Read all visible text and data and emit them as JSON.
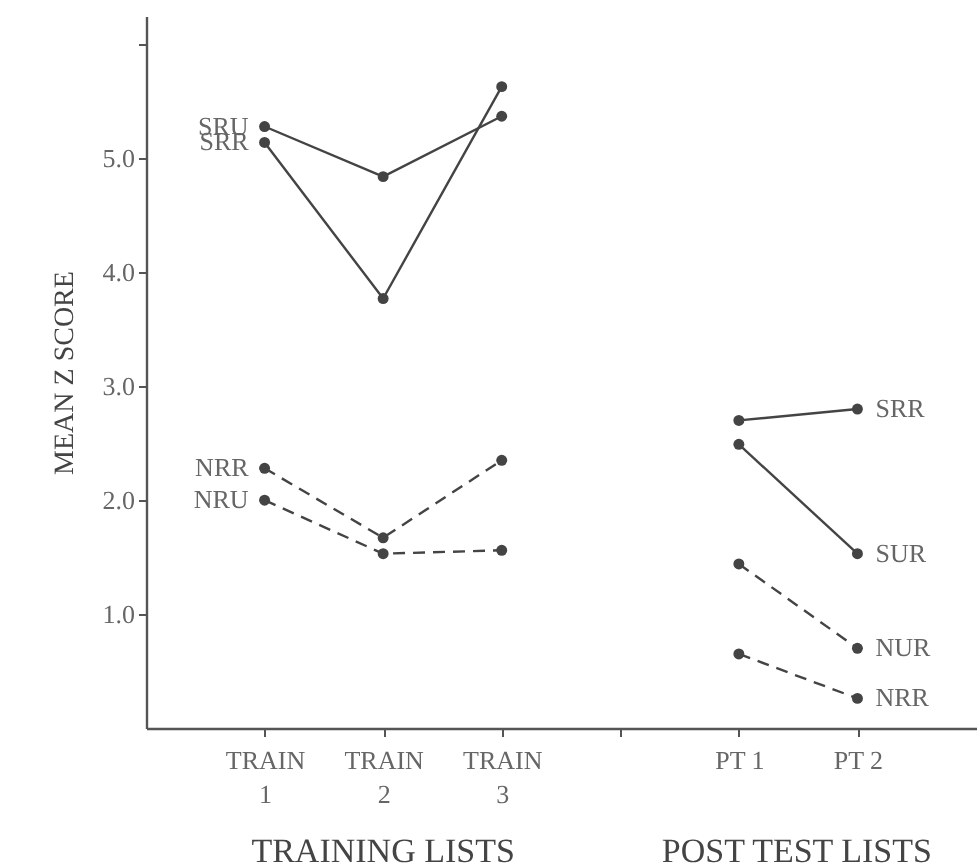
{
  "chart_data": {
    "type": "line",
    "ylabel": "MEAN Z SCORE",
    "categories": [
      "TRAIN\n1",
      "TRAIN\n2",
      "TRAIN\n3",
      null,
      "PT 1",
      "PT 2"
    ],
    "ylim": [
      0,
      6.25
    ],
    "yticks": [
      {
        "value": 1,
        "label": "1.0"
      },
      {
        "value": 2,
        "label": "2.0"
      },
      {
        "value": 3,
        "label": "3.0"
      },
      {
        "value": 4,
        "label": "4.0"
      },
      {
        "value": 5,
        "label": "5.0"
      },
      {
        "value": 6,
        "label": null
      }
    ],
    "marker": "circle",
    "annotations": [
      "TRAINING LISTS",
      "POST TEST LISTS"
    ],
    "series": [
      {
        "name": "SRU",
        "color": "#444444",
        "line_style": "solid",
        "values": [
          5.28,
          4.84,
          5.37,
          null,
          null,
          null
        ]
      },
      {
        "name": "SRR",
        "color": "#444444",
        "line_style": "solid",
        "values": [
          5.14,
          3.77,
          5.63,
          null,
          null,
          null
        ]
      },
      {
        "name": "NRR",
        "color": "#444444",
        "line_style": "dashed",
        "values": [
          2.28,
          1.67,
          2.35,
          null,
          null,
          null
        ]
      },
      {
        "name": "NRU",
        "color": "#444444",
        "line_style": "dashed",
        "values": [
          2.0,
          1.53,
          1.56,
          null,
          null,
          null
        ]
      },
      {
        "name": "SRR",
        "color": "#444444",
        "line_style": "solid",
        "values": [
          null,
          null,
          null,
          null,
          2.7,
          2.8
        ]
      },
      {
        "name": "SUR",
        "color": "#444444",
        "line_style": "solid",
        "values": [
          null,
          null,
          null,
          null,
          2.49,
          1.53
        ]
      },
      {
        "name": "NUR",
        "color": "#444444",
        "line_style": "dashed",
        "values": [
          null,
          null,
          null,
          null,
          1.44,
          0.7
        ]
      },
      {
        "name": "NRR",
        "color": "#444444",
        "line_style": "dashed",
        "values": [
          null,
          null,
          null,
          null,
          0.65,
          0.26
        ]
      }
    ]
  }
}
